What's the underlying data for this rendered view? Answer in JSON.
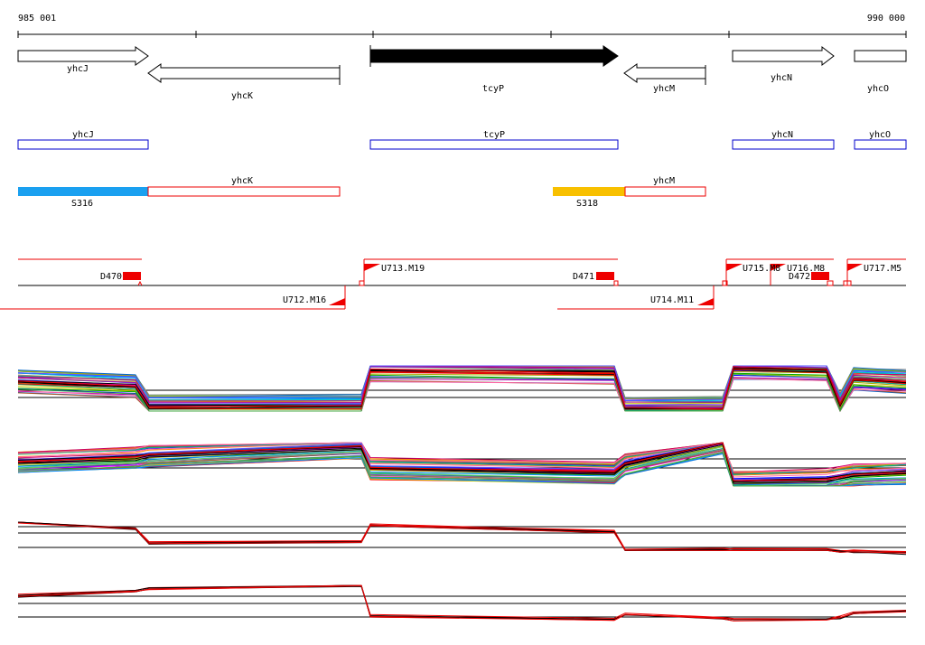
{
  "ruler": {
    "start": "985 001",
    "end": "990 000"
  },
  "genes": [
    "yhcJ",
    "yhcK",
    "tcyP",
    "yhcM",
    "yhcN",
    "yhcO"
  ],
  "cds": [
    "yhcJ",
    "tcyP",
    "yhcN",
    "yhcO"
  ],
  "transcripts": [
    "yhcK",
    "yhcM"
  ],
  "segments": [
    "S316",
    "S318"
  ],
  "features": [
    "D470",
    "U713.M19",
    "D471",
    "U715.M8",
    "U716.M8",
    "D472",
    "U717.M5",
    "U712.M16",
    "U714.M11"
  ]
}
